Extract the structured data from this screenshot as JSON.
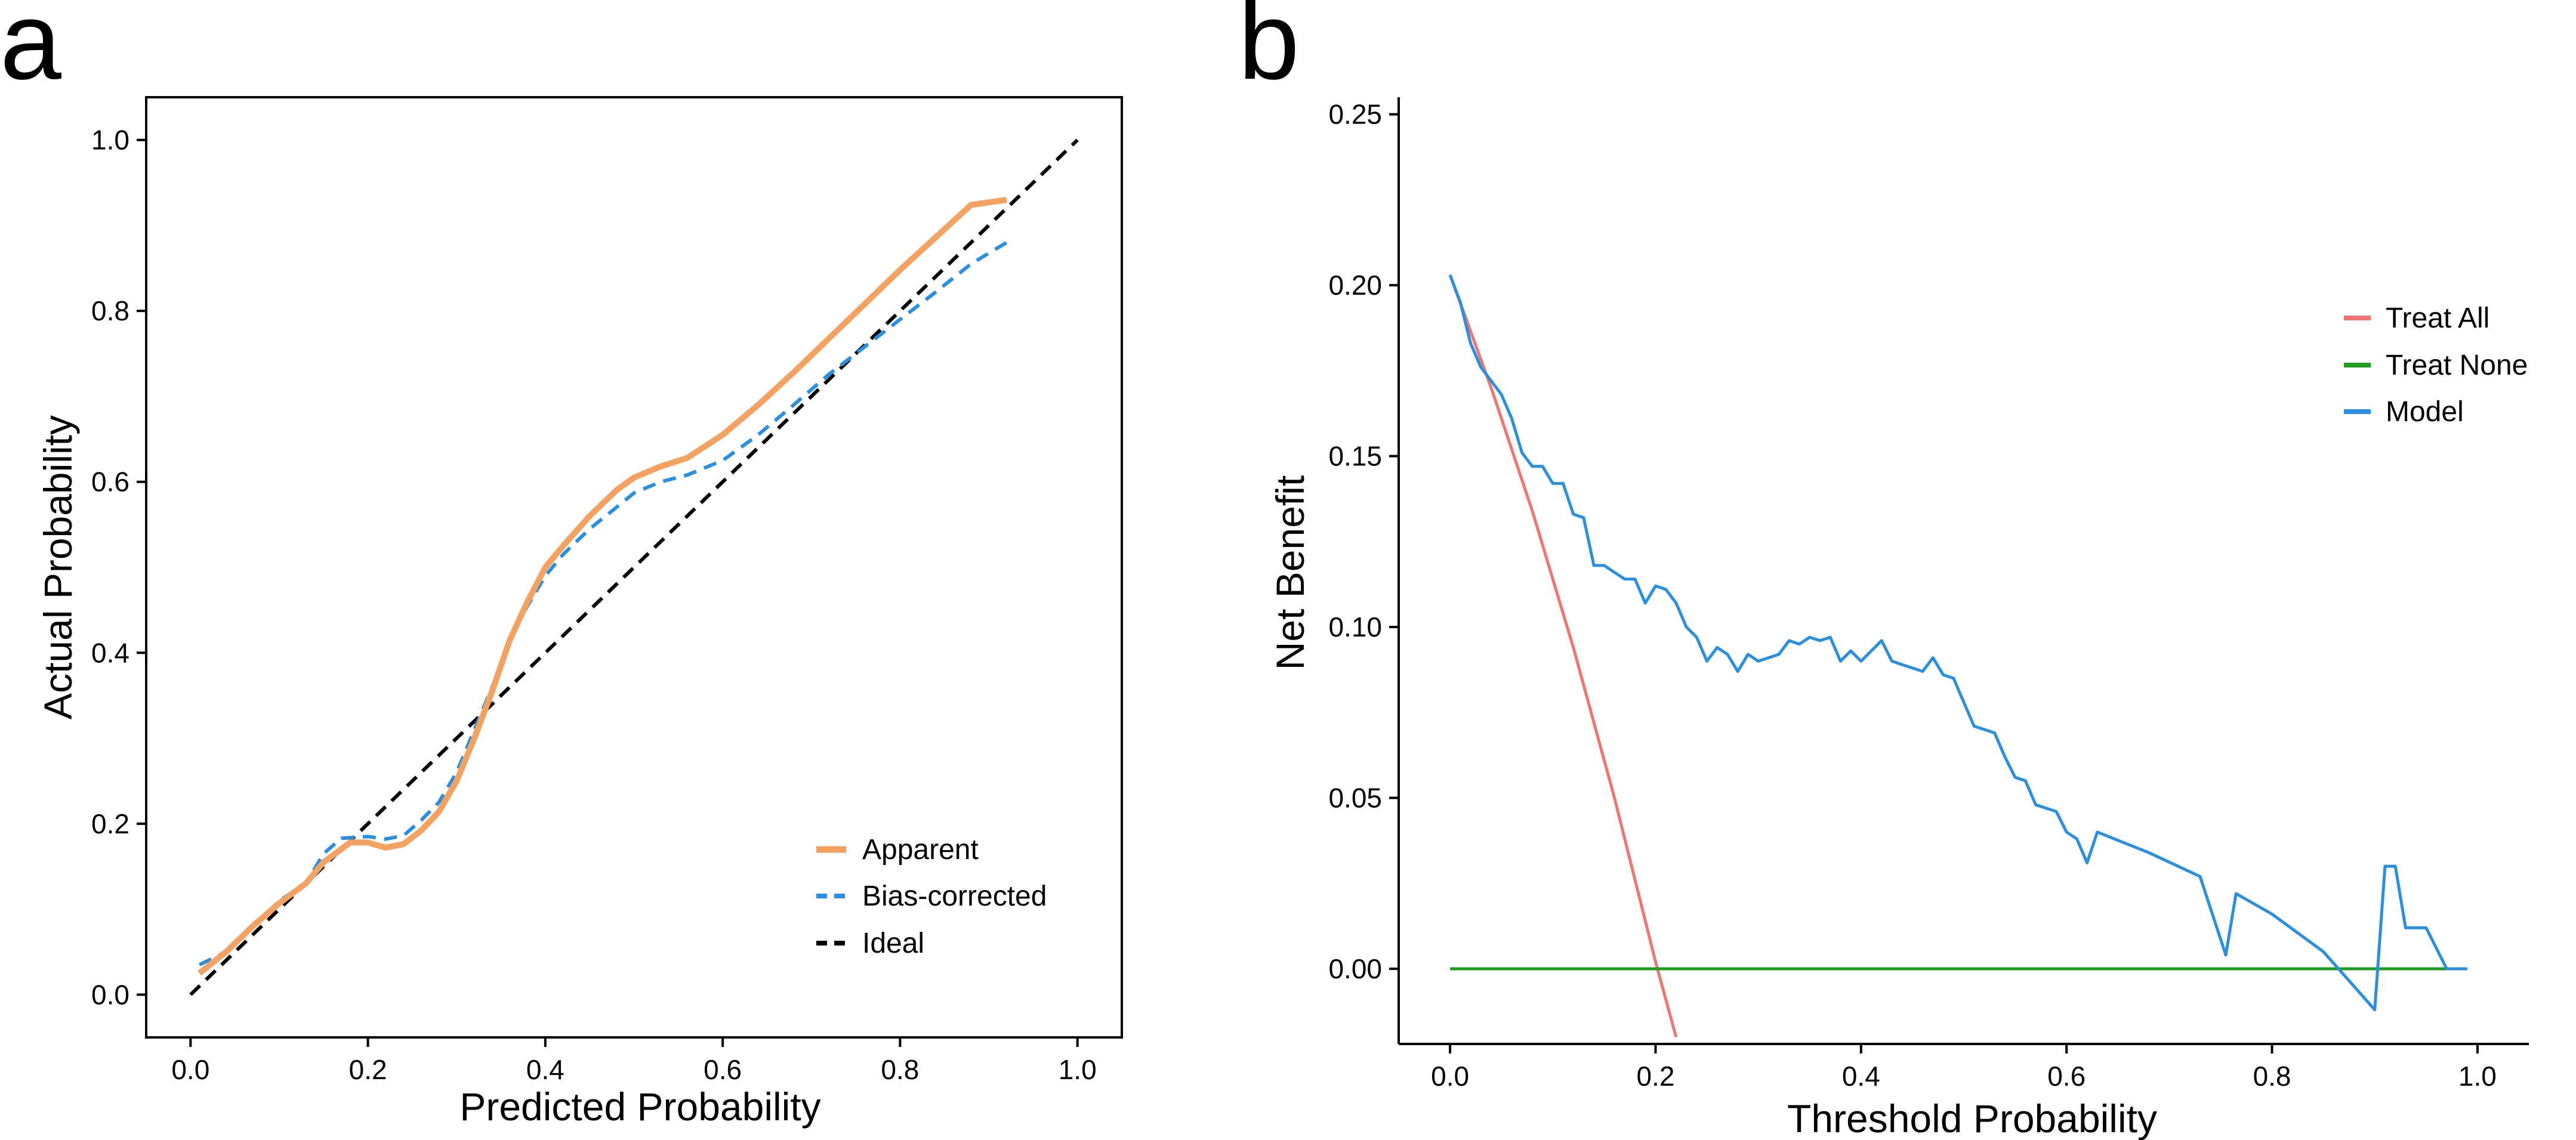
{
  "chart_data": [
    {
      "panel": "a",
      "type": "line",
      "title": "",
      "xlabel": "Predicted Probability",
      "ylabel": "Actual Probability",
      "xlim": [
        -0.05,
        1.05
      ],
      "ylim": [
        -0.05,
        1.05
      ],
      "xticks": [
        "0.0",
        "0.2",
        "0.4",
        "0.6",
        "0.8",
        "1.0"
      ],
      "yticks": [
        "0.0",
        "0.2",
        "0.4",
        "0.6",
        "0.8",
        "1.0"
      ],
      "legend_position": "bottom-right",
      "series": [
        {
          "name": "Apparent",
          "color": "#f4a261",
          "style": "solid",
          "x": [
            0.01,
            0.04,
            0.07,
            0.1,
            0.13,
            0.15,
            0.18,
            0.2,
            0.22,
            0.24,
            0.26,
            0.28,
            0.3,
            0.32,
            0.34,
            0.36,
            0.38,
            0.4,
            0.42,
            0.45,
            0.48,
            0.5,
            0.53,
            0.56,
            0.6,
            0.64,
            0.68,
            0.72,
            0.76,
            0.8,
            0.84,
            0.88,
            0.92
          ],
          "y": [
            0.025,
            0.05,
            0.08,
            0.107,
            0.13,
            0.155,
            0.178,
            0.178,
            0.172,
            0.176,
            0.192,
            0.214,
            0.25,
            0.3,
            0.355,
            0.415,
            0.46,
            0.5,
            0.525,
            0.56,
            0.59,
            0.605,
            0.618,
            0.628,
            0.655,
            0.69,
            0.728,
            0.768,
            0.808,
            0.848,
            0.886,
            0.924,
            0.93
          ]
        },
        {
          "name": "Bias-corrected",
          "color": "#2b8fe0",
          "style": "dashed",
          "x": [
            0.01,
            0.04,
            0.07,
            0.1,
            0.13,
            0.15,
            0.17,
            0.2,
            0.22,
            0.24,
            0.26,
            0.28,
            0.3,
            0.32,
            0.34,
            0.36,
            0.38,
            0.4,
            0.42,
            0.45,
            0.48,
            0.5,
            0.53,
            0.56,
            0.6,
            0.64,
            0.68,
            0.72,
            0.76,
            0.8,
            0.84,
            0.88,
            0.92
          ],
          "y": [
            0.035,
            0.05,
            0.078,
            0.11,
            0.13,
            0.165,
            0.183,
            0.185,
            0.182,
            0.186,
            0.204,
            0.225,
            0.26,
            0.31,
            0.36,
            0.415,
            0.455,
            0.49,
            0.515,
            0.545,
            0.57,
            0.587,
            0.6,
            0.608,
            0.625,
            0.655,
            0.69,
            0.726,
            0.758,
            0.79,
            0.822,
            0.855,
            0.88
          ]
        },
        {
          "name": "Ideal",
          "color": "#000000",
          "style": "dashed",
          "x": [
            0.0,
            1.0
          ],
          "y": [
            0.0,
            1.0
          ]
        }
      ]
    },
    {
      "panel": "b",
      "type": "line",
      "title": "",
      "xlabel": "Threshold Probability",
      "ylabel": "Net Benefit",
      "xlim": [
        -0.05,
        1.05
      ],
      "ylim": [
        -0.022,
        0.255
      ],
      "xticks": [
        "0.0",
        "0.2",
        "0.4",
        "0.6",
        "0.8",
        "1.0"
      ],
      "yticks": [
        "0.00",
        "0.05",
        "0.10",
        "0.15",
        "0.20",
        "0.25"
      ],
      "legend_position": "top-right",
      "series": [
        {
          "name": "Treat All",
          "color": "#f07470",
          "x": [
            0.0,
            0.04,
            0.08,
            0.12,
            0.16,
            0.2,
            0.22
          ],
          "y": [
            0.203,
            0.17,
            0.134,
            0.094,
            0.05,
            0.002,
            -0.02
          ]
        },
        {
          "name": "Treat None",
          "color": "#1f9e1f",
          "x": [
            0.0,
            0.99
          ],
          "y": [
            0.0,
            0.0
          ]
        },
        {
          "name": "Model",
          "color": "#2b8fe0",
          "x": [
            0.0,
            0.01,
            0.02,
            0.03,
            0.04,
            0.05,
            0.06,
            0.07,
            0.08,
            0.09,
            0.1,
            0.11,
            0.12,
            0.13,
            0.14,
            0.15,
            0.16,
            0.17,
            0.18,
            0.19,
            0.2,
            0.21,
            0.22,
            0.23,
            0.24,
            0.25,
            0.26,
            0.27,
            0.28,
            0.29,
            0.3,
            0.31,
            0.32,
            0.33,
            0.34,
            0.35,
            0.36,
            0.37,
            0.38,
            0.39,
            0.4,
            0.41,
            0.42,
            0.43,
            0.44,
            0.45,
            0.46,
            0.47,
            0.48,
            0.49,
            0.5,
            0.51,
            0.52,
            0.53,
            0.54,
            0.55,
            0.56,
            0.57,
            0.58,
            0.59,
            0.6,
            0.61,
            0.62,
            0.63,
            0.68,
            0.73,
            0.755,
            0.765,
            0.8,
            0.85,
            0.9,
            0.91,
            0.92,
            0.93,
            0.95,
            0.97,
            0.99
          ],
          "y": [
            0.203,
            0.195,
            0.183,
            0.176,
            0.172,
            0.168,
            0.161,
            0.151,
            0.147,
            0.147,
            0.142,
            0.142,
            0.133,
            0.132,
            0.118,
            0.118,
            0.116,
            0.114,
            0.114,
            0.107,
            0.112,
            0.111,
            0.107,
            0.1,
            0.097,
            0.09,
            0.094,
            0.092,
            0.087,
            0.092,
            0.09,
            0.091,
            0.092,
            0.096,
            0.095,
            0.097,
            0.096,
            0.097,
            0.09,
            0.093,
            0.09,
            0.093,
            0.096,
            0.09,
            0.089,
            0.088,
            0.087,
            0.091,
            0.086,
            0.085,
            0.078,
            0.071,
            0.07,
            0.069,
            0.062,
            0.056,
            0.055,
            0.048,
            0.047,
            0.046,
            0.04,
            0.038,
            0.031,
            0.04,
            0.034,
            0.027,
            0.004,
            0.022,
            0.016,
            0.005,
            -0.012,
            0.03,
            0.03,
            0.012,
            0.012,
            0.0,
            0.0
          ]
        }
      ]
    }
  ]
}
